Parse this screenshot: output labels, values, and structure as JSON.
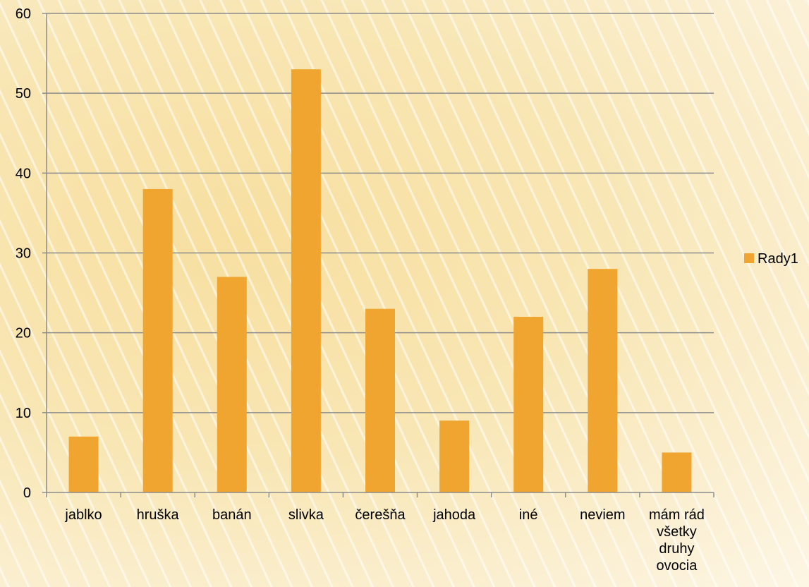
{
  "chart_data": {
    "type": "bar",
    "categories": [
      [
        "jablko"
      ],
      [
        "hruška"
      ],
      [
        "banán"
      ],
      [
        "slivka"
      ],
      [
        "čerešňa"
      ],
      [
        "jahoda"
      ],
      [
        "iné"
      ],
      [
        "neviem"
      ],
      [
        "mám rád",
        "všetky",
        "druhy",
        "ovocia"
      ]
    ],
    "series": [
      {
        "name": "Rady1",
        "values": [
          7,
          38,
          27,
          53,
          23,
          9,
          22,
          28,
          5
        ],
        "color": "#f0a530"
      }
    ],
    "y_ticks": [
      "0",
      "10",
      "20",
      "30",
      "40",
      "50",
      "60"
    ],
    "ylim": [
      0,
      60
    ],
    "grid": true,
    "gridline_color": "#8c8c8c",
    "legend_position": "right",
    "title": "",
    "xlabel": "",
    "ylabel": ""
  }
}
